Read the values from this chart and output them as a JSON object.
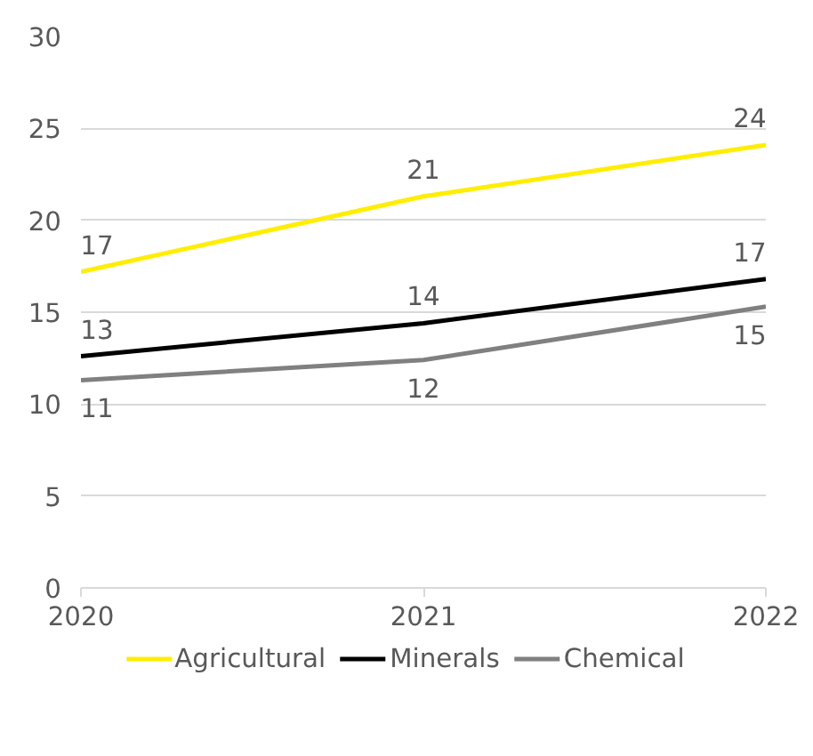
{
  "chart_data": {
    "type": "line",
    "x": [
      2020,
      2021,
      2022
    ],
    "xlim": [
      2020,
      2022
    ],
    "xticks": [
      2020,
      2021,
      2022
    ],
    "ylim": [
      0,
      30
    ],
    "yticks": [
      0,
      5,
      10,
      15,
      20,
      25,
      30
    ],
    "series": [
      {
        "name": "Agricultural",
        "color": "#ffee00",
        "values": [
          17.2,
          21.3,
          24.1
        ],
        "value_labels": [
          "17",
          "21",
          "24"
        ]
      },
      {
        "name": "Minerals",
        "color": "#000000",
        "values": [
          12.6,
          14.4,
          16.8
        ],
        "value_labels": [
          "13",
          "14",
          "17"
        ]
      },
      {
        "name": "Chemical",
        "color": "#808080",
        "values": [
          11.3,
          12.4,
          15.3
        ],
        "value_labels": [
          "11",
          "12",
          "15"
        ]
      }
    ],
    "grid": "y",
    "legend": "bottom",
    "marker": "none",
    "line_style": "solid"
  }
}
